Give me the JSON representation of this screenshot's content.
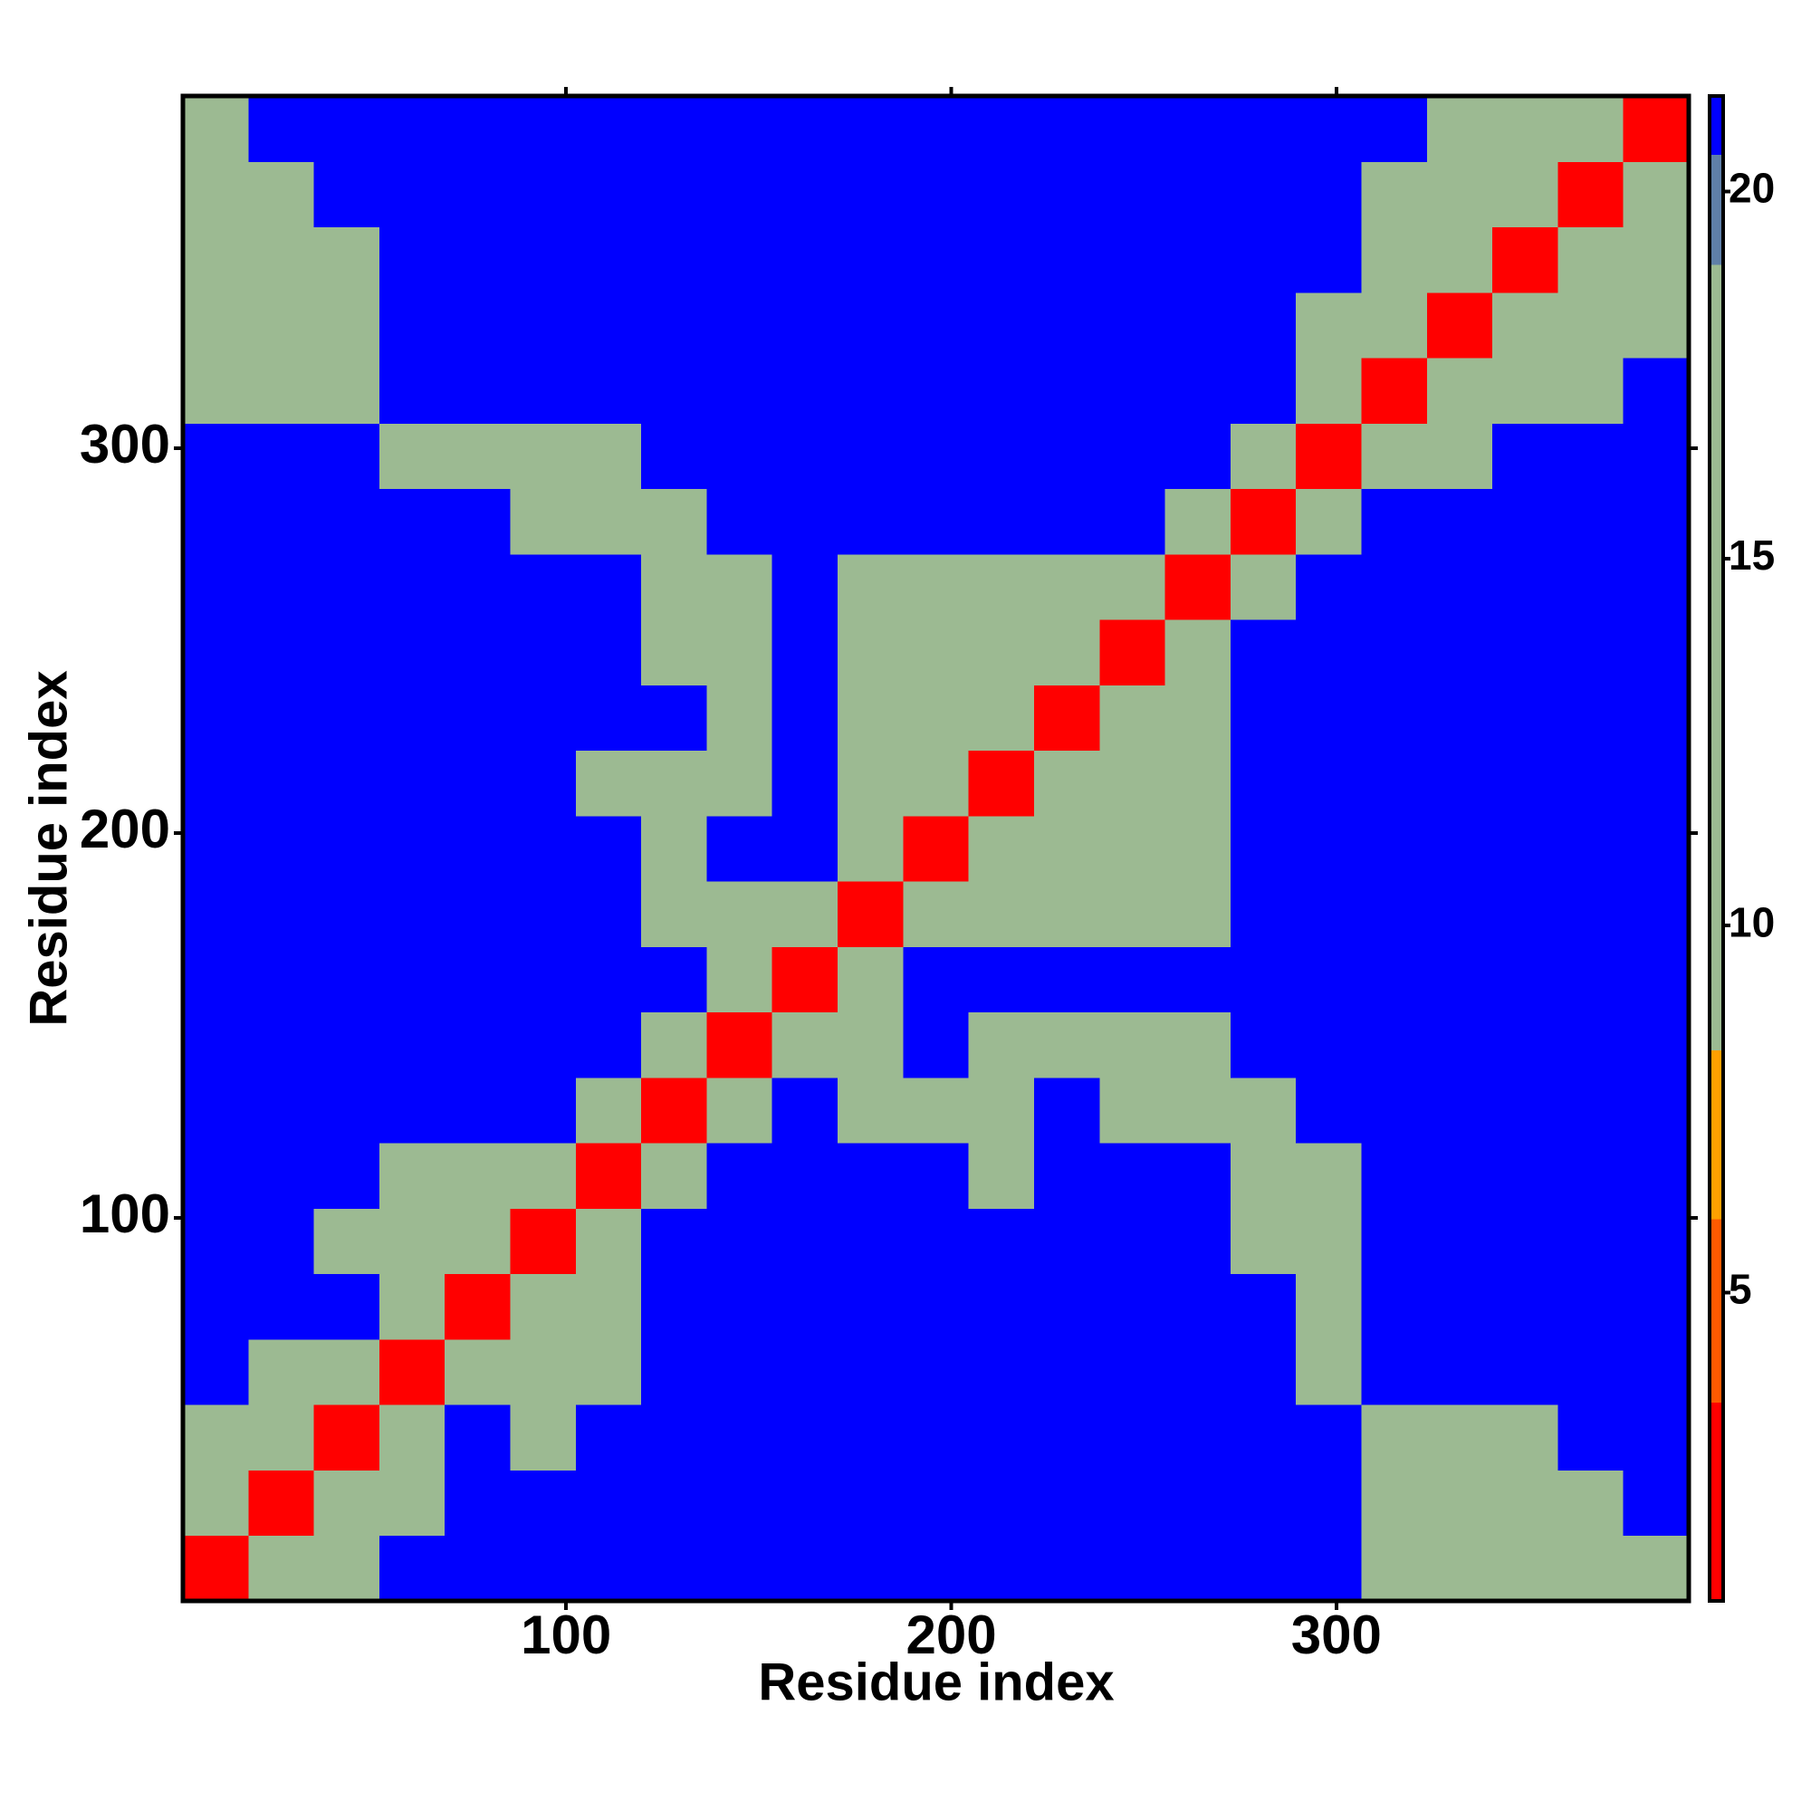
{
  "chart_data": {
    "type": "heatmap",
    "xlabel": "Residue index",
    "ylabel": "Residue index",
    "xlim": [
      0.5,
      391.5
    ],
    "ylim": [
      0.5,
      391.5
    ],
    "xticks": [
      100,
      200,
      300
    ],
    "yticks": [
      100,
      200,
      300
    ],
    "zlim": [
      0.8,
      21.3
    ],
    "zticks": [
      5,
      10,
      15,
      20
    ],
    "colorscale": [
      [
        0.8,
        3.5,
        "#ff0000"
      ],
      [
        3.5,
        6,
        "#ff5a00"
      ],
      [
        6,
        8.3,
        "#ffa000"
      ],
      [
        8.3,
        19,
        "#9cba92"
      ],
      [
        19,
        20.5,
        "#5f7fa8"
      ],
      [
        20.5,
        21.3,
        "#0000ff"
      ]
    ],
    "values": [
      [
        3,
        10,
        12,
        21,
        21,
        21,
        21,
        21,
        21,
        21,
        21,
        21,
        21,
        21,
        21,
        21,
        21,
        21,
        12,
        12,
        12,
        12,
        12
      ],
      [
        10,
        3,
        10,
        12,
        21,
        21,
        21,
        21,
        21,
        21,
        21,
        21,
        21,
        21,
        21,
        21,
        21,
        21,
        12,
        12,
        12,
        12,
        21
      ],
      [
        12,
        10,
        3,
        10,
        21,
        14,
        21,
        21,
        21,
        21,
        21,
        21,
        21,
        21,
        21,
        21,
        21,
        21,
        12,
        12,
        12,
        21,
        21
      ],
      [
        21,
        12,
        10,
        3,
        10,
        12,
        12,
        21,
        21,
        21,
        21,
        21,
        21,
        21,
        21,
        21,
        21,
        12,
        21,
        21,
        21,
        21,
        21
      ],
      [
        21,
        21,
        21,
        10,
        3,
        10,
        12,
        21,
        21,
        21,
        21,
        21,
        21,
        21,
        21,
        21,
        21,
        12,
        21,
        21,
        21,
        21,
        21
      ],
      [
        21,
        21,
        14,
        12,
        10,
        3,
        10,
        21,
        21,
        21,
        21,
        21,
        21,
        21,
        21,
        21,
        12,
        12,
        21,
        21,
        21,
        21,
        21
      ],
      [
        21,
        21,
        21,
        12,
        12,
        10,
        3,
        10,
        21,
        21,
        21,
        21,
        12,
        21,
        21,
        21,
        12,
        12,
        21,
        21,
        21,
        21,
        21
      ],
      [
        21,
        21,
        21,
        21,
        21,
        21,
        10,
        3,
        10,
        21,
        13,
        12,
        12,
        21,
        12,
        12,
        12,
        21,
        21,
        21,
        21,
        21,
        21
      ],
      [
        21,
        21,
        21,
        21,
        21,
        21,
        21,
        10,
        3,
        10,
        13,
        21,
        12,
        12,
        12,
        12,
        21,
        21,
        21,
        21,
        21,
        21,
        21
      ],
      [
        21,
        21,
        21,
        21,
        21,
        21,
        21,
        21,
        10,
        3,
        10,
        21,
        21,
        21,
        21,
        21,
        21,
        21,
        21,
        21,
        21,
        21,
        21
      ],
      [
        21,
        21,
        21,
        21,
        21,
        21,
        21,
        13,
        13,
        10,
        3,
        10,
        12,
        12,
        12,
        12,
        21,
        21,
        21,
        21,
        21,
        21,
        21
      ],
      [
        21,
        21,
        21,
        21,
        21,
        21,
        21,
        12,
        21,
        21,
        10,
        3,
        10,
        12,
        12,
        12,
        21,
        21,
        21,
        21,
        21,
        21,
        21
      ],
      [
        21,
        21,
        21,
        21,
        21,
        21,
        12,
        12,
        12,
        21,
        12,
        10,
        3,
        10,
        12,
        12,
        21,
        21,
        21,
        21,
        21,
        21,
        21
      ],
      [
        21,
        21,
        21,
        21,
        21,
        21,
        21,
        21,
        12,
        21,
        12,
        12,
        10,
        3,
        10,
        12,
        21,
        21,
        21,
        21,
        21,
        21,
        21
      ],
      [
        21,
        21,
        21,
        21,
        21,
        21,
        21,
        12,
        12,
        21,
        12,
        12,
        12,
        10,
        3,
        10,
        21,
        21,
        21,
        21,
        21,
        21,
        21
      ],
      [
        21,
        21,
        21,
        21,
        21,
        21,
        21,
        12,
        12,
        21,
        12,
        12,
        12,
        12,
        10,
        3,
        10,
        21,
        21,
        21,
        21,
        21,
        21
      ],
      [
        21,
        21,
        21,
        21,
        21,
        12,
        12,
        12,
        21,
        21,
        21,
        21,
        21,
        21,
        21,
        10,
        3,
        10,
        21,
        21,
        21,
        21,
        21
      ],
      [
        21,
        21,
        21,
        12,
        12,
        12,
        12,
        21,
        21,
        21,
        21,
        21,
        21,
        21,
        21,
        21,
        10,
        3,
        10,
        12,
        21,
        21,
        21
      ],
      [
        12,
        12,
        12,
        21,
        21,
        21,
        21,
        21,
        21,
        21,
        21,
        21,
        21,
        21,
        21,
        21,
        21,
        10,
        3,
        10,
        12,
        12,
        21
      ],
      [
        12,
        12,
        12,
        21,
        21,
        21,
        21,
        21,
        21,
        21,
        21,
        21,
        21,
        21,
        21,
        21,
        21,
        12,
        10,
        3,
        10,
        12,
        12
      ],
      [
        12,
        12,
        12,
        21,
        21,
        21,
        21,
        21,
        21,
        21,
        21,
        21,
        21,
        21,
        21,
        21,
        21,
        21,
        12,
        10,
        3,
        10,
        12
      ],
      [
        12,
        12,
        21,
        21,
        21,
        21,
        21,
        21,
        21,
        21,
        21,
        21,
        21,
        21,
        21,
        21,
        21,
        21,
        12,
        12,
        10,
        3,
        10
      ],
      [
        12,
        21,
        21,
        21,
        21,
        21,
        21,
        21,
        21,
        21,
        21,
        21,
        21,
        21,
        21,
        21,
        21,
        21,
        21,
        12,
        12,
        10,
        3
      ]
    ]
  }
}
